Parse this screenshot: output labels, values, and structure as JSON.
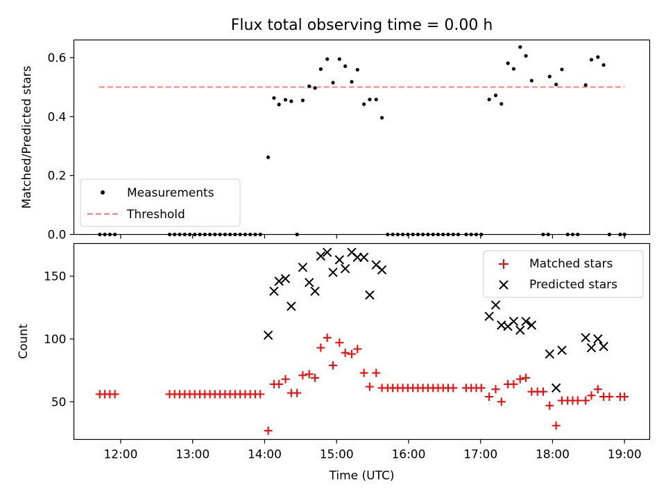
{
  "title": "Flux total observing time = 0.00 h",
  "chart_data": [
    {
      "type": "scatter",
      "ylabel": "Matched/Predicted stars",
      "xlabel": "",
      "x_unit": "hours UTC",
      "xlim": [
        11.35,
        19.35
      ],
      "ylim": [
        0.0,
        0.66
      ],
      "x_ticks": [
        12,
        13,
        14,
        15,
        16,
        17,
        18,
        19
      ],
      "y_ticks": [
        0.0,
        0.2,
        0.4,
        0.6
      ],
      "y_tick_labels": [
        "0.0",
        "0.2",
        "0.4",
        "0.6"
      ],
      "legend_position": "lower-left",
      "threshold": {
        "name": "Threshold",
        "value": 0.5,
        "x_range": [
          11.7,
          19.0
        ],
        "color": "#ff7f7f",
        "style": "dashed"
      },
      "series": [
        {
          "name": "Measurements",
          "color": "#000000",
          "marker": "dot",
          "points": [
            [
              11.71,
              0
            ],
            [
              11.78,
              0
            ],
            [
              11.85,
              0
            ],
            [
              11.92,
              0
            ],
            [
              12.68,
              0
            ],
            [
              12.75,
              0
            ],
            [
              12.82,
              0
            ],
            [
              12.89,
              0
            ],
            [
              12.96,
              0
            ],
            [
              13.03,
              0
            ],
            [
              13.1,
              0
            ],
            [
              13.17,
              0
            ],
            [
              13.24,
              0
            ],
            [
              13.31,
              0
            ],
            [
              13.38,
              0
            ],
            [
              13.45,
              0
            ],
            [
              13.52,
              0
            ],
            [
              13.59,
              0
            ],
            [
              13.66,
              0
            ],
            [
              13.73,
              0
            ],
            [
              13.8,
              0
            ],
            [
              13.87,
              0
            ],
            [
              13.94,
              0
            ],
            [
              14.05,
              0.262
            ],
            [
              14.13,
              0.463
            ],
            [
              14.2,
              0.441
            ],
            [
              14.29,
              0.457
            ],
            [
              14.37,
              0.452
            ],
            [
              14.45,
              0
            ],
            [
              14.53,
              0.455
            ],
            [
              14.62,
              0.503
            ],
            [
              14.7,
              0.497
            ],
            [
              14.78,
              0.561
            ],
            [
              14.87,
              0.595
            ],
            [
              14.95,
              0.515
            ],
            [
              15.04,
              0.595
            ],
            [
              15.12,
              0.571
            ],
            [
              15.21,
              0.518
            ],
            [
              15.29,
              0.559
            ],
            [
              15.38,
              0.442
            ],
            [
              15.46,
              0.458
            ],
            [
              15.55,
              0.458
            ],
            [
              15.63,
              0.396
            ],
            [
              15.71,
              0
            ],
            [
              15.78,
              0
            ],
            [
              15.85,
              0
            ],
            [
              15.92,
              0
            ],
            [
              15.99,
              0
            ],
            [
              16.06,
              0
            ],
            [
              16.13,
              0
            ],
            [
              16.2,
              0
            ],
            [
              16.27,
              0
            ],
            [
              16.34,
              0
            ],
            [
              16.41,
              0
            ],
            [
              16.48,
              0
            ],
            [
              16.55,
              0
            ],
            [
              16.62,
              0
            ],
            [
              16.69,
              0
            ],
            [
              16.8,
              0
            ],
            [
              16.87,
              0
            ],
            [
              16.94,
              0
            ],
            [
              17.01,
              0
            ],
            [
              17.12,
              0.458
            ],
            [
              17.21,
              0.472
            ],
            [
              17.29,
              0.443
            ],
            [
              17.38,
              0.581
            ],
            [
              17.46,
              0.562
            ],
            [
              17.55,
              0.636
            ],
            [
              17.63,
              0.606
            ],
            [
              17.71,
              0.522
            ],
            [
              17.87,
              0
            ],
            [
              17.94,
              0
            ],
            [
              17.96,
              0.536
            ],
            [
              18.05,
              0.509
            ],
            [
              18.13,
              0.56
            ],
            [
              18.21,
              0
            ],
            [
              18.28,
              0
            ],
            [
              18.35,
              0
            ],
            [
              18.46,
              0.507
            ],
            [
              18.54,
              0.593
            ],
            [
              18.63,
              0.602
            ],
            [
              18.71,
              0.575
            ],
            [
              18.79,
              0
            ],
            [
              18.94,
              0
            ],
            [
              19.0,
              0
            ]
          ]
        }
      ]
    },
    {
      "type": "scatter",
      "ylabel": "Count",
      "xlabel": "Time (UTC)",
      "x_unit": "hours UTC",
      "xlim": [
        11.35,
        19.35
      ],
      "ylim": [
        20,
        176
      ],
      "x_ticks": [
        12,
        13,
        14,
        15,
        16,
        17,
        18,
        19
      ],
      "x_tick_labels": [
        "12:00",
        "13:00",
        "14:00",
        "15:00",
        "16:00",
        "17:00",
        "18:00",
        "19:00"
      ],
      "y_ticks": [
        50,
        100,
        150
      ],
      "y_tick_labels": [
        "50",
        "100",
        "150"
      ],
      "legend_position": "upper-right",
      "series": [
        {
          "name": "Matched stars",
          "color": "#ff0000",
          "marker": "plus",
          "points": [
            [
              11.71,
              56
            ],
            [
              11.78,
              56
            ],
            [
              11.85,
              56
            ],
            [
              11.92,
              56
            ],
            [
              12.68,
              56
            ],
            [
              12.75,
              56
            ],
            [
              12.82,
              56
            ],
            [
              12.89,
              56
            ],
            [
              12.96,
              56
            ],
            [
              13.03,
              56
            ],
            [
              13.1,
              56
            ],
            [
              13.17,
              56
            ],
            [
              13.24,
              56
            ],
            [
              13.31,
              56
            ],
            [
              13.38,
              56
            ],
            [
              13.45,
              56
            ],
            [
              13.52,
              56
            ],
            [
              13.59,
              56
            ],
            [
              13.66,
              56
            ],
            [
              13.73,
              56
            ],
            [
              13.8,
              56
            ],
            [
              13.87,
              56
            ],
            [
              13.94,
              56
            ],
            [
              14.05,
              27
            ],
            [
              14.13,
              64
            ],
            [
              14.2,
              64
            ],
            [
              14.29,
              68
            ],
            [
              14.37,
              57
            ],
            [
              14.45,
              57
            ],
            [
              14.53,
              71
            ],
            [
              14.62,
              72
            ],
            [
              14.7,
              69
            ],
            [
              14.78,
              93
            ],
            [
              14.87,
              101
            ],
            [
              14.95,
              79
            ],
            [
              15.04,
              97
            ],
            [
              15.12,
              89
            ],
            [
              15.21,
              88
            ],
            [
              15.29,
              92
            ],
            [
              15.38,
              73
            ],
            [
              15.46,
              62
            ],
            [
              15.55,
              73
            ],
            [
              15.63,
              61
            ],
            [
              15.71,
              61
            ],
            [
              15.78,
              61
            ],
            [
              15.85,
              61
            ],
            [
              15.92,
              61
            ],
            [
              15.99,
              61
            ],
            [
              16.06,
              61
            ],
            [
              16.13,
              61
            ],
            [
              16.2,
              61
            ],
            [
              16.27,
              61
            ],
            [
              16.34,
              61
            ],
            [
              16.41,
              61
            ],
            [
              16.48,
              61
            ],
            [
              16.55,
              61
            ],
            [
              16.62,
              61
            ],
            [
              16.8,
              61
            ],
            [
              16.87,
              61
            ],
            [
              16.94,
              61
            ],
            [
              17.01,
              61
            ],
            [
              17.12,
              54
            ],
            [
              17.21,
              60
            ],
            [
              17.29,
              50
            ],
            [
              17.38,
              64
            ],
            [
              17.46,
              64
            ],
            [
              17.55,
              68
            ],
            [
              17.63,
              69
            ],
            [
              17.71,
              58
            ],
            [
              17.79,
              58
            ],
            [
              17.87,
              58
            ],
            [
              17.96,
              47
            ],
            [
              18.05,
              31
            ],
            [
              18.13,
              51
            ],
            [
              18.21,
              51
            ],
            [
              18.28,
              51
            ],
            [
              18.35,
              51
            ],
            [
              18.46,
              51
            ],
            [
              18.54,
              55
            ],
            [
              18.63,
              60
            ],
            [
              18.71,
              54
            ],
            [
              18.79,
              54
            ],
            [
              18.94,
              54
            ],
            [
              19.0,
              54
            ]
          ]
        },
        {
          "name": "Predicted stars",
          "color": "#000000",
          "marker": "x",
          "points": [
            [
              14.05,
              103
            ],
            [
              14.13,
              138
            ],
            [
              14.2,
              146
            ],
            [
              14.29,
              148
            ],
            [
              14.37,
              126
            ],
            [
              14.53,
              157
            ],
            [
              14.62,
              145
            ],
            [
              14.7,
              138
            ],
            [
              14.78,
              166
            ],
            [
              14.87,
              169
            ],
            [
              14.95,
              153
            ],
            [
              15.04,
              163
            ],
            [
              15.12,
              156
            ],
            [
              15.21,
              169
            ],
            [
              15.29,
              165
            ],
            [
              15.38,
              165
            ],
            [
              15.46,
              135
            ],
            [
              15.55,
              159
            ],
            [
              15.63,
              155
            ],
            [
              17.12,
              118
            ],
            [
              17.21,
              127
            ],
            [
              17.29,
              111
            ],
            [
              17.38,
              110
            ],
            [
              17.46,
              114
            ],
            [
              17.55,
              107
            ],
            [
              17.63,
              114
            ],
            [
              17.71,
              111
            ],
            [
              17.96,
              88
            ],
            [
              18.05,
              61
            ],
            [
              18.13,
              91
            ],
            [
              18.46,
              101
            ],
            [
              18.54,
              93
            ],
            [
              18.63,
              100
            ],
            [
              18.71,
              94
            ]
          ]
        }
      ]
    }
  ]
}
